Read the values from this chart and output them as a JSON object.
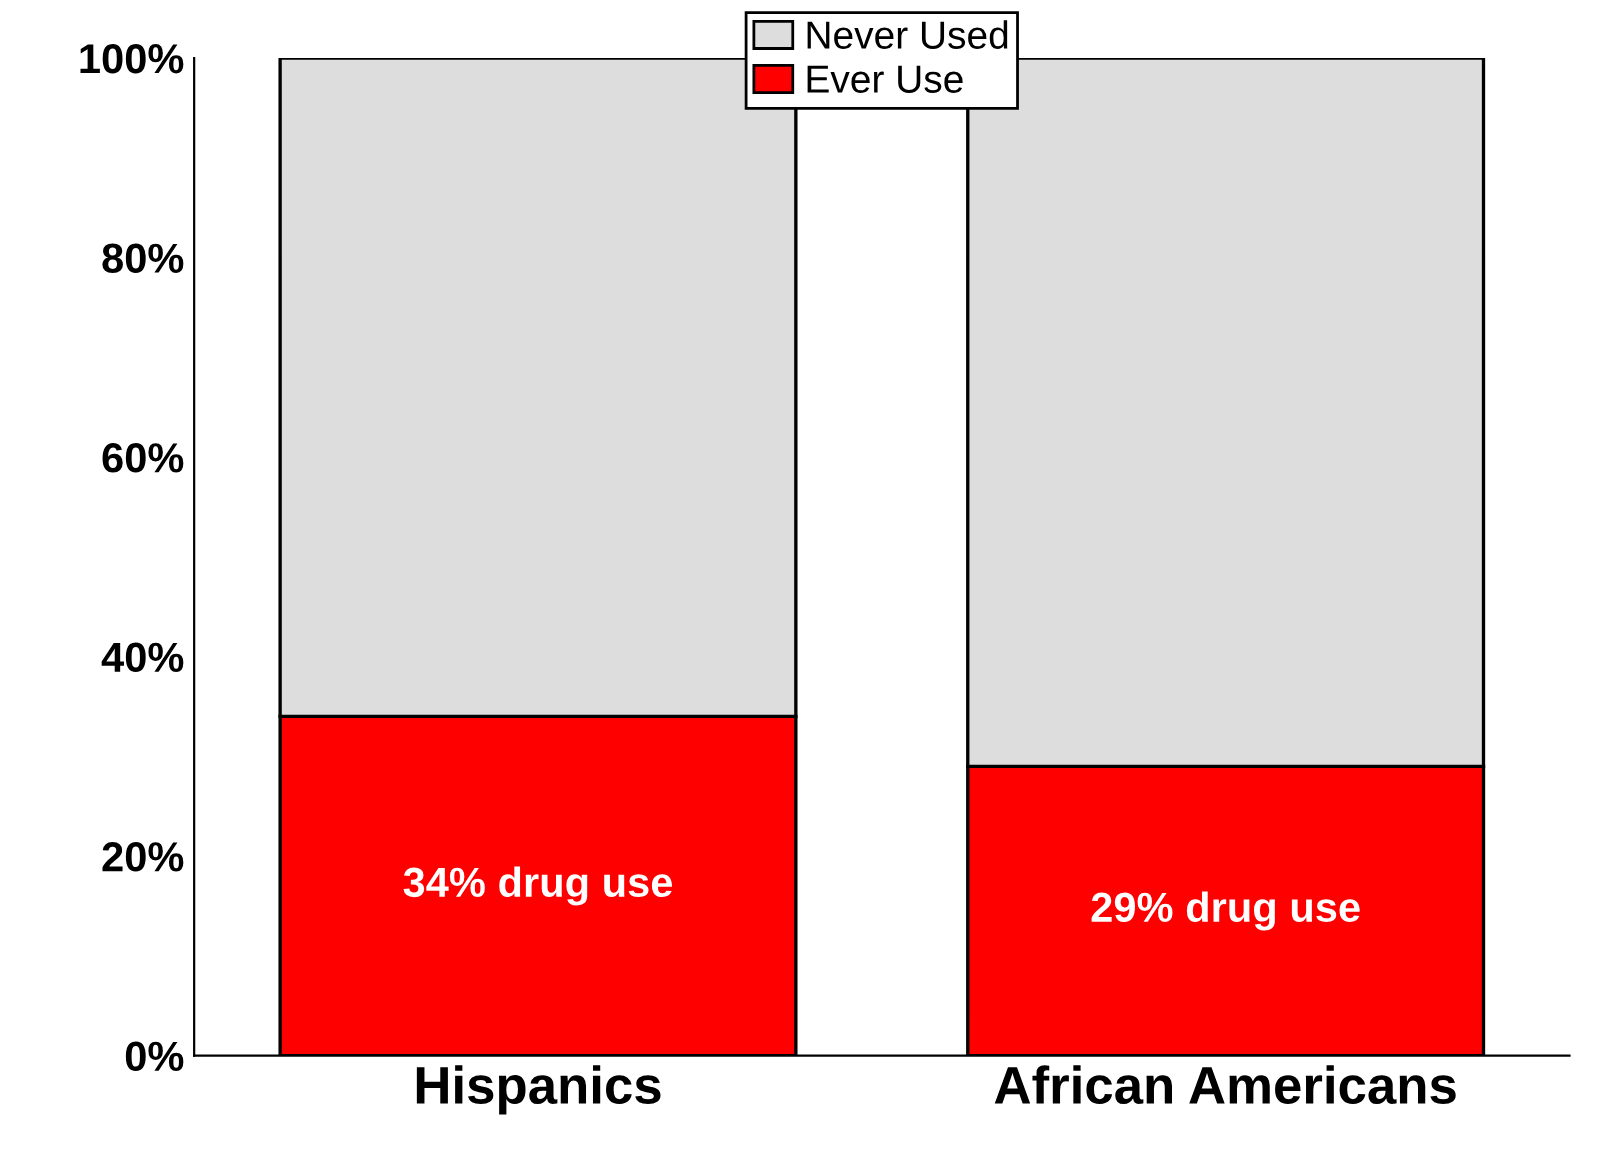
{
  "chart_data": {
    "type": "bar",
    "stacked": true,
    "categories": [
      "Hispanics",
      "African Americans"
    ],
    "series": [
      {
        "name": "Ever Use",
        "color": "#ff0000",
        "values": [
          34,
          29
        ],
        "value_labels": [
          "34% drug use",
          "29% drug use"
        ]
      },
      {
        "name": "Never Used",
        "color": "#dddddd",
        "values": [
          66,
          71
        ]
      }
    ],
    "ylim": [
      0,
      100
    ],
    "yticks": [
      {
        "value": 0,
        "label": "0%"
      },
      {
        "value": 20,
        "label": "20%"
      },
      {
        "value": 40,
        "label": "40%"
      },
      {
        "value": 60,
        "label": "60%"
      },
      {
        "value": 80,
        "label": "80%"
      },
      {
        "value": 100,
        "label": "100%"
      }
    ],
    "grid": false,
    "legend": "top"
  }
}
